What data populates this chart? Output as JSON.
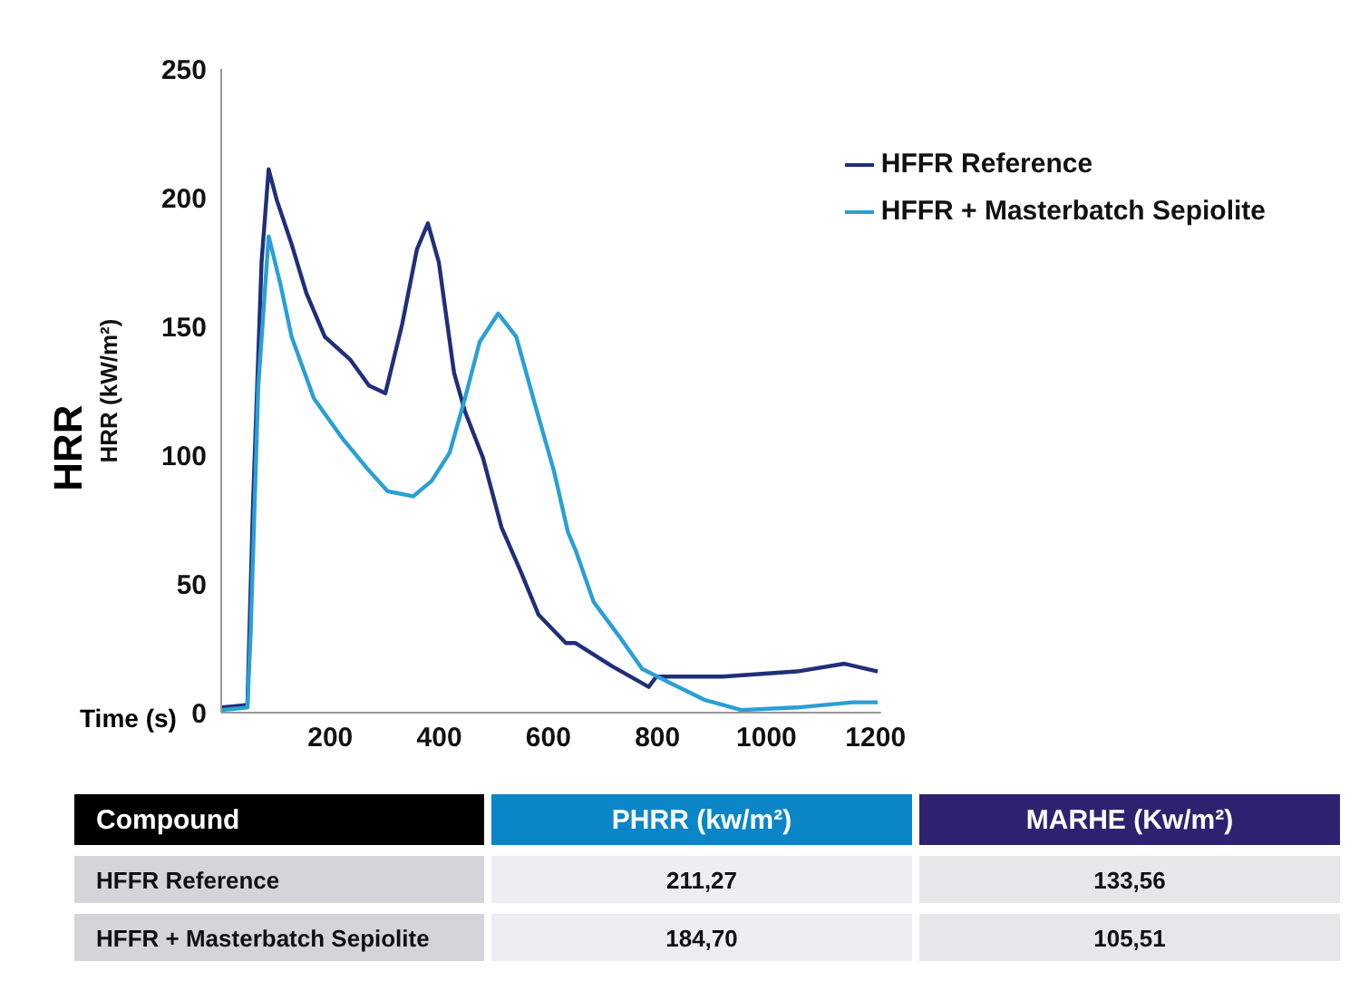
{
  "chart_data": {
    "type": "line",
    "title": "HRR",
    "ylabel": "HRR (kW/m²)",
    "xlabel": "Time (s)",
    "xlim": [
      0,
      1210
    ],
    "xticks": [
      200,
      400,
      600,
      800,
      1000,
      1200
    ],
    "ylim": [
      0,
      250
    ],
    "yticks": [
      0,
      50,
      100,
      150,
      200,
      250
    ],
    "grid": false,
    "legend": "top right",
    "marker": "none",
    "line_style": "solid",
    "series": [
      {
        "name": "HFFR Reference",
        "color": "#1f2f7a",
        "x": [
          0,
          48,
          58,
          74,
          87,
          102,
          129,
          156,
          190,
          237,
          271,
          301,
          332,
          359,
          379,
          399,
          427,
          447,
          480,
          514,
          549,
          582,
          632,
          650,
          717,
          784,
          798,
          920,
          1056,
          1143,
          1204
        ],
        "values": [
          2,
          3,
          79,
          175,
          211,
          199,
          182,
          163,
          146,
          137,
          127,
          124,
          151,
          180,
          190,
          175,
          132,
          117,
          99,
          72,
          55,
          38,
          27,
          27,
          18,
          10,
          14,
          14,
          16,
          19,
          16
        ]
      },
      {
        "name": "HFFR + Masterbatch Sepiolite",
        "color": "#2a9fd6",
        "x": [
          0,
          48,
          54,
          68,
          87,
          109,
          129,
          170,
          224,
          271,
          305,
          352,
          386,
          419,
          447,
          474,
          508,
          541,
          575,
          610,
          636,
          650,
          683,
          732,
          772,
          819,
          886,
          954,
          1056,
          1158,
          1204
        ],
        "values": [
          1,
          2,
          31,
          127,
          185,
          166,
          146,
          122,
          106,
          94,
          86,
          84,
          90,
          101,
          122,
          144,
          155,
          146,
          120,
          94,
          70,
          63,
          43,
          29,
          17,
          12,
          5,
          1,
          2,
          4,
          4
        ]
      }
    ],
    "annotations": [
      "Compound",
      "PHRR (kw/m²)",
      "MARHE (Kw/m²)",
      "HFFR Reference",
      "211,27",
      "133,56",
      "HFFR + Masterbatch Sepiolite",
      "184,70",
      "105,51"
    ]
  }
}
